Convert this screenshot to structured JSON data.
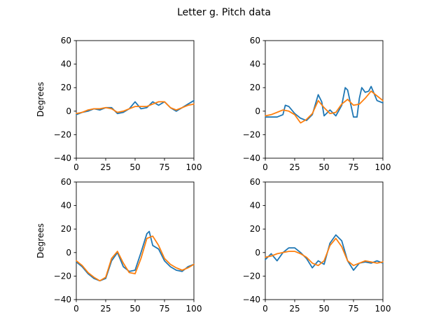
{
  "title": "Letter g. Pitch data",
  "colors": {
    "blue": "#1f77b4",
    "orange": "#ff7f0e"
  },
  "chart_data": [
    {
      "type": "line",
      "ylabel": "Degrees",
      "xlim": [
        0,
        100
      ],
      "ylim": [
        -40,
        60
      ],
      "xticks": [
        0,
        25,
        50,
        75,
        100
      ],
      "yticks": [
        -40,
        -20,
        0,
        20,
        40,
        60
      ],
      "grid": false,
      "series": [
        {
          "color": "#1f77b4",
          "x": [
            0,
            5,
            10,
            15,
            20,
            25,
            30,
            35,
            40,
            45,
            50,
            55,
            60,
            65,
            70,
            75,
            80,
            85,
            90,
            95,
            100
          ],
          "y": [
            -3,
            -1,
            0,
            2,
            1,
            3,
            3,
            -2,
            -1,
            2,
            8,
            2,
            3,
            8,
            5,
            8,
            3,
            0,
            3,
            6,
            9
          ]
        },
        {
          "color": "#ff7f0e",
          "x": [
            0,
            5,
            10,
            15,
            20,
            25,
            30,
            35,
            40,
            45,
            50,
            55,
            60,
            65,
            70,
            75,
            80,
            85,
            90,
            95,
            100
          ],
          "y": [
            -2,
            -1,
            1,
            2,
            2,
            3,
            2,
            -1,
            0,
            2,
            4,
            4,
            4,
            6,
            8,
            8,
            3,
            1,
            3,
            5,
            6
          ]
        }
      ]
    },
    {
      "type": "line",
      "ylabel": "",
      "xlim": [
        0,
        100
      ],
      "ylim": [
        -40,
        60
      ],
      "xticks": [
        0,
        25,
        50,
        75,
        100
      ],
      "yticks": [
        -40,
        -20,
        0,
        20,
        40,
        60
      ],
      "grid": false,
      "series": [
        {
          "color": "#1f77b4",
          "x": [
            0,
            5,
            10,
            15,
            17,
            20,
            25,
            30,
            35,
            40,
            45,
            48,
            50,
            55,
            60,
            65,
            68,
            70,
            75,
            78,
            80,
            82,
            85,
            88,
            90,
            95,
            100
          ],
          "y": [
            -5,
            -5,
            -5,
            -3,
            5,
            4,
            -2,
            -6,
            -8,
            -3,
            14,
            8,
            -4,
            1,
            -4,
            5,
            20,
            18,
            -5,
            -5,
            11,
            20,
            16,
            17,
            21,
            9,
            7
          ]
        },
        {
          "color": "#ff7f0e",
          "x": [
            0,
            5,
            10,
            15,
            20,
            25,
            30,
            35,
            40,
            45,
            50,
            55,
            60,
            65,
            70,
            75,
            80,
            85,
            90,
            95,
            100
          ],
          "y": [
            -4,
            -3,
            -1,
            1,
            0,
            -3,
            -10,
            -7,
            -2,
            9,
            3,
            -2,
            -1,
            6,
            10,
            5,
            6,
            11,
            17,
            13,
            9
          ]
        }
      ]
    },
    {
      "type": "line",
      "ylabel": "Degrees",
      "xlim": [
        0,
        100
      ],
      "ylim": [
        -40,
        60
      ],
      "xticks": [
        0,
        25,
        50,
        75,
        100
      ],
      "yticks": [
        -40,
        -20,
        0,
        20,
        40,
        60
      ],
      "grid": false,
      "series": [
        {
          "color": "#1f77b4",
          "x": [
            0,
            5,
            10,
            15,
            20,
            25,
            30,
            35,
            40,
            45,
            50,
            55,
            60,
            62,
            65,
            70,
            75,
            80,
            85,
            90,
            95,
            100
          ],
          "y": [
            -8,
            -12,
            -18,
            -22,
            -24,
            -22,
            -7,
            0,
            -12,
            -16,
            -15,
            0,
            16,
            18,
            6,
            3,
            -7,
            -12,
            -15,
            -16,
            -12,
            -10
          ]
        },
        {
          "color": "#ff7f0e",
          "x": [
            0,
            5,
            10,
            15,
            20,
            25,
            30,
            35,
            40,
            45,
            50,
            55,
            60,
            65,
            70,
            75,
            80,
            85,
            90,
            95,
            100
          ],
          "y": [
            -7,
            -11,
            -17,
            -21,
            -24,
            -21,
            -5,
            1,
            -9,
            -17,
            -18,
            -5,
            12,
            14,
            6,
            -5,
            -10,
            -13,
            -15,
            -13,
            -10
          ]
        }
      ]
    },
    {
      "type": "line",
      "ylabel": "",
      "xlim": [
        0,
        100
      ],
      "ylim": [
        -40,
        60
      ],
      "xticks": [
        0,
        25,
        50,
        75,
        100
      ],
      "yticks": [
        -40,
        -20,
        0,
        20,
        40,
        60
      ],
      "grid": false,
      "series": [
        {
          "color": "#1f77b4",
          "x": [
            0,
            5,
            10,
            15,
            20,
            25,
            30,
            35,
            40,
            45,
            50,
            55,
            60,
            65,
            70,
            75,
            80,
            85,
            90,
            95,
            100
          ],
          "y": [
            -6,
            -1,
            -7,
            0,
            4,
            4,
            0,
            -5,
            -13,
            -7,
            -10,
            8,
            15,
            10,
            -7,
            -15,
            -9,
            -8,
            -9,
            -7,
            -9
          ]
        },
        {
          "color": "#ff7f0e",
          "x": [
            0,
            5,
            10,
            15,
            20,
            25,
            30,
            35,
            40,
            45,
            50,
            55,
            60,
            65,
            70,
            75,
            80,
            85,
            90,
            95,
            100
          ],
          "y": [
            -4,
            -3,
            -1,
            0,
            1,
            1,
            -1,
            -4,
            -9,
            -11,
            -7,
            6,
            12,
            5,
            -7,
            -11,
            -9,
            -7,
            -8,
            -9,
            -8
          ]
        }
      ]
    }
  ]
}
